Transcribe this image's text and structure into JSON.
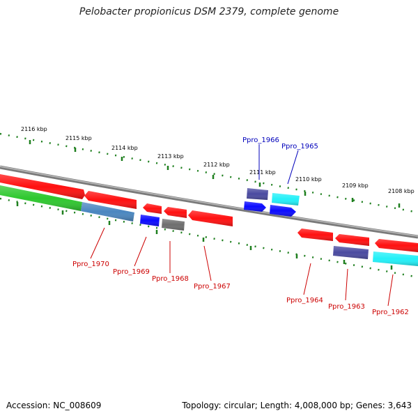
{
  "title": "Pelobacter propionicus DSM 2379, complete genome",
  "footer": {
    "accession": "Accession: NC_008609",
    "summary": "Topology: circular; Length: 4,008,000 bp; Genes: 3,643"
  },
  "colors": {
    "backbone": "#8a8a8a",
    "tick": "#1e7f1e",
    "plus_label": "#0000bb",
    "minus_label": "#cc0000",
    "red": "#ff1010",
    "blue": "#0a0aff",
    "navy": "#4a4aa0",
    "cyan": "#22f0f8",
    "gray": "#6e6e6e",
    "steel": "#4a86c0",
    "green": "#2ec82e"
  },
  "scale_marks": [
    "2116 kbp",
    "2115 kbp",
    "2114 kbp",
    "2113 kbp",
    "2112 kbp",
    "2111 kbp",
    "2110 kbp",
    "2109 kbp",
    "2108 kbp"
  ],
  "genes_forward": [
    "Ppro_1966",
    "Ppro_1965"
  ],
  "genes_reverse": [
    "Ppro_1970",
    "Ppro_1969",
    "Ppro_1968",
    "Ppro_1967",
    "Ppro_1964",
    "Ppro_1963",
    "Ppro_1962"
  ]
}
